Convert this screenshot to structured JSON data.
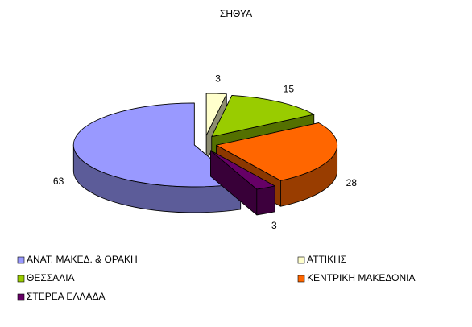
{
  "chart_data": {
    "type": "pie3d",
    "title": "ΣΗΘΥΑ",
    "categories": [
      "ΑΝΑΤ. ΜΑΚΕΔ. & ΘΡΑΚΗ",
      "ΑΤΤΙΚΗΣ",
      "ΘΕΣΣΑΛΙΑ",
      "ΚΕΝΤΡΙΚΗ ΜΑΚΕΔΟΝΙΑ",
      "ΣΤΕΡΕΑ ΕΛΛΑΔΑ"
    ],
    "values": [
      63,
      3,
      15,
      28,
      3
    ],
    "colors": [
      "#9999ff",
      "#ffffcc",
      "#99cc00",
      "#ff6600",
      "#660066"
    ],
    "legend": "bottom"
  }
}
